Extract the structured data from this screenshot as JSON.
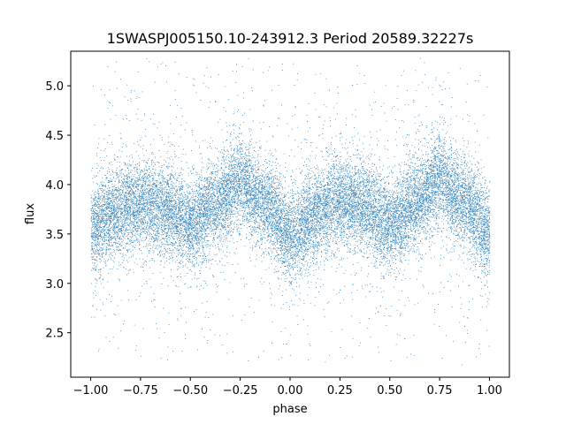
{
  "chart_data": {
    "type": "scatter",
    "title": "1SWASPJ005150.10-243912.3 Period 20589.32227s",
    "xlabel": "phase",
    "ylabel": "flux",
    "xlim": [
      -1.1,
      1.1
    ],
    "ylim": [
      2.05,
      5.35
    ],
    "x_ticks": [
      -1.0,
      -0.75,
      -0.5,
      -0.25,
      0.0,
      0.25,
      0.5,
      0.75,
      1.0
    ],
    "x_tick_labels": [
      "−1.00",
      "−0.75",
      "−0.50",
      "−0.25",
      "0.00",
      "0.25",
      "0.50",
      "0.75",
      "1.00"
    ],
    "y_ticks": [
      2.5,
      3.0,
      3.5,
      4.0,
      4.5,
      5.0
    ],
    "y_tick_labels": [
      "2.5",
      "3.0",
      "3.5",
      "4.0",
      "4.5",
      "5.0"
    ],
    "grid": false,
    "marker_color": "#1f77b4",
    "series": [
      {
        "x_range": [
          -1.0,
          1.0
        ],
        "approx_points": 20000,
        "trend_phase": [
          -1.0,
          -0.875,
          -0.75,
          -0.625,
          -0.5,
          -0.375,
          -0.25,
          -0.125,
          0.0,
          0.125,
          0.25,
          0.375,
          0.5,
          0.625,
          0.75,
          0.875,
          1.0
        ],
        "trend_flux": [
          3.55,
          3.72,
          3.82,
          3.75,
          3.6,
          3.8,
          4.02,
          3.8,
          3.48,
          3.68,
          3.85,
          3.78,
          3.6,
          3.8,
          4.05,
          3.82,
          3.5
        ],
        "core_spread": 0.22,
        "outer_flux_range": [
          2.2,
          5.3
        ]
      }
    ]
  }
}
